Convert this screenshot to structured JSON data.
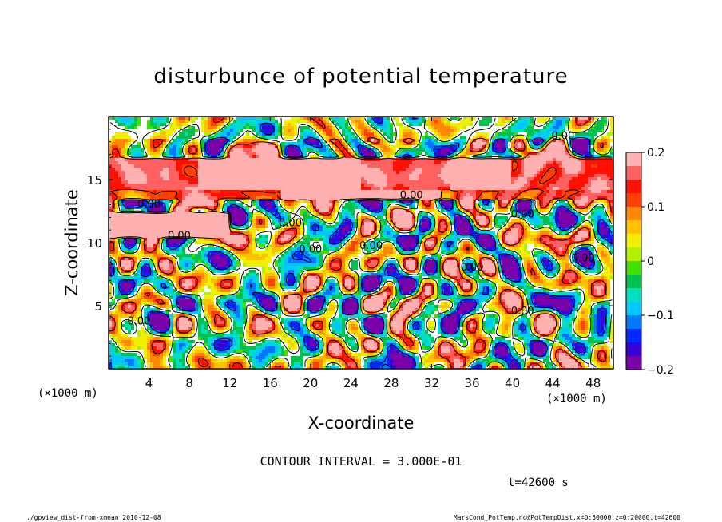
{
  "chart_data": {
    "type": "heatmap",
    "title": "disturbunce of potential temperature",
    "xlabel": "X-coordinate",
    "ylabel": "Z-coordinate",
    "x_unit": "(×1000 m)",
    "y_unit": "(×1000 m)",
    "xlim": [
      0,
      50
    ],
    "ylim": [
      0,
      20
    ],
    "x_ticks": [
      4,
      8,
      12,
      16,
      20,
      24,
      28,
      32,
      36,
      40,
      44,
      48
    ],
    "y_ticks": [
      5,
      10,
      15
    ],
    "colorbar": {
      "range": [
        -0.2,
        0.2
      ],
      "tick_values": [
        -0.2,
        -0.1,
        0,
        0.1,
        0.2
      ],
      "tick_labels": [
        "−0.2",
        "−0.1",
        "0",
        "0.1",
        "0.2"
      ],
      "colors": [
        "#7a00a8",
        "#3a00d8",
        "#0028ff",
        "#0078ff",
        "#00c8ff",
        "#00e0c0",
        "#00c050",
        "#40e000",
        "#b0f000",
        "#f0f000",
        "#ffc000",
        "#ff8800",
        "#ff4000",
        "#ff1000",
        "#ff6060",
        "#ffb0b0"
      ]
    },
    "contour_label": "0.00",
    "contour_interval_text": "CONTOUR INTERVAL = 3.000E-01",
    "time_text": "t=42600 s"
  },
  "footer": {
    "left": "./gpview_dist-from-xmean  2010-12-08",
    "right": "MarsCond_PotTemp.nc@PotTempDist,x=0:50000,z=0:20000,t=42600"
  }
}
